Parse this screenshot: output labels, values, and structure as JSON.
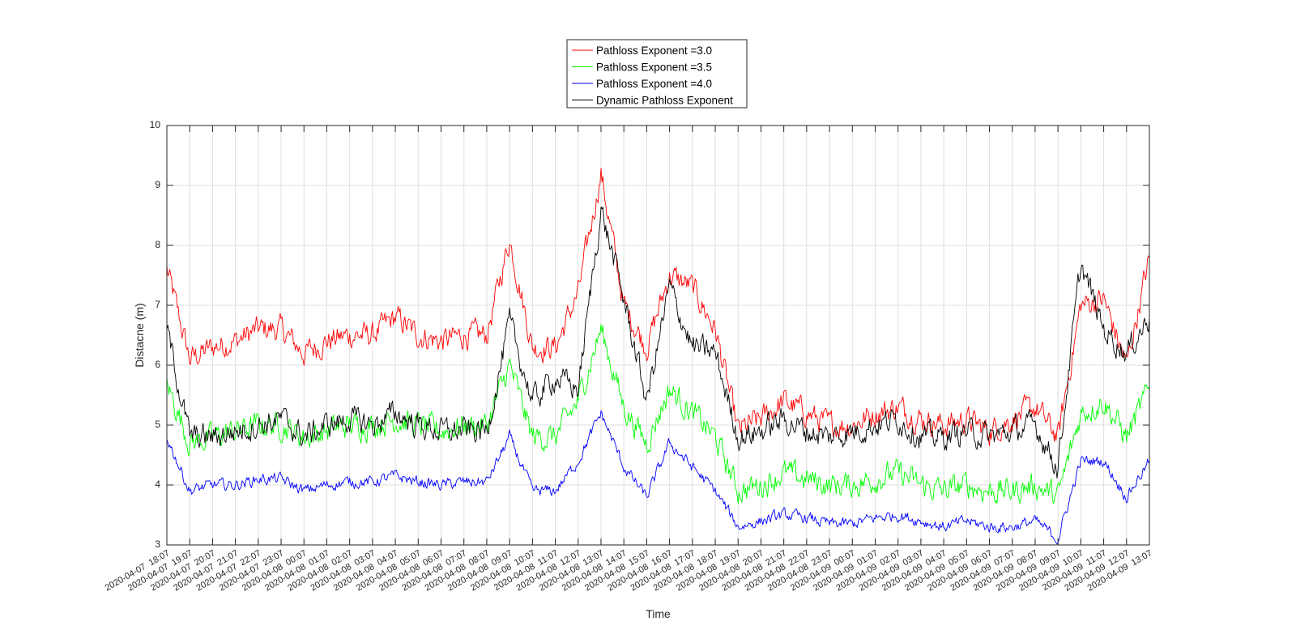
{
  "chart_data": {
    "type": "line",
    "title": "",
    "xlabel": "Time",
    "ylabel": "Distacne (m)",
    "ylim": [
      3,
      10
    ],
    "yticks": [
      3,
      4,
      5,
      6,
      7,
      8,
      9,
      10
    ],
    "grid": true,
    "legend_position": "top-center, above plot",
    "xlim": [
      "2020-04-07 18:07",
      "2020-04-09 13:07"
    ],
    "x_tick_labels": [
      "2020-04-07  18:07",
      "2020-04-07  19:07",
      "2020-04-07  20:07",
      "2020-04-07  21:07",
      "2020-04-07  22:07",
      "2020-04-07  23:07",
      "2020-04-08  00:07",
      "2020-04-08  01:07",
      "2020-04-08  02:07",
      "2020-04-08  03:07",
      "2020-04-08  04:07",
      "2020-04-08  05:07",
      "2020-04-08  06:07",
      "2020-04-08  07:07",
      "2020-04-08  08:07",
      "2020-04-08  09:07",
      "2020-04-08  10:07",
      "2020-04-08  11:07",
      "2020-04-08  12:07",
      "2020-04-08  13:07",
      "2020-04-08  14:07",
      "2020-04-08  15:07",
      "2020-04-08  16:07",
      "2020-04-08  17:07",
      "2020-04-08  18:07",
      "2020-04-08  19:07",
      "2020-04-08  20:07",
      "2020-04-08  21:07",
      "2020-04-08  22:07",
      "2020-04-08  23:07",
      "2020-04-09  00:07",
      "2020-04-09  01:07",
      "2020-04-09  02:07",
      "2020-04-09  03:07",
      "2020-04-09  04:07",
      "2020-04-09  05:07",
      "2020-04-09  06:07",
      "2020-04-09  07:07",
      "2020-04-09  08:07",
      "2020-04-09  09:07",
      "2020-04-09  10:07",
      "2020-04-09  11:07",
      "2020-04-09  12:07",
      "2020-04-09  13:07"
    ],
    "x": [
      "2020-04-07 18:07",
      "2020-04-07 19:07",
      "2020-04-07 20:07",
      "2020-04-07 21:07",
      "2020-04-07 22:07",
      "2020-04-07 23:07",
      "2020-04-08 00:07",
      "2020-04-08 01:07",
      "2020-04-08 02:07",
      "2020-04-08 03:07",
      "2020-04-08 04:07",
      "2020-04-08 05:07",
      "2020-04-08 06:07",
      "2020-04-08 07:07",
      "2020-04-08 08:07",
      "2020-04-08 09:07",
      "2020-04-08 10:07",
      "2020-04-08 11:07",
      "2020-04-08 12:07",
      "2020-04-08 13:07",
      "2020-04-08 14:07",
      "2020-04-08 15:07",
      "2020-04-08 16:07",
      "2020-04-08 17:07",
      "2020-04-08 18:07",
      "2020-04-08 19:07",
      "2020-04-08 20:07",
      "2020-04-08 21:07",
      "2020-04-08 22:07",
      "2020-04-08 23:07",
      "2020-04-09 00:07",
      "2020-04-09 01:07",
      "2020-04-09 02:07",
      "2020-04-09 03:07",
      "2020-04-09 04:07",
      "2020-04-09 05:07",
      "2020-04-09 06:07",
      "2020-04-09 07:07",
      "2020-04-09 08:07",
      "2020-04-09 09:07",
      "2020-04-09 10:07",
      "2020-04-09 11:07",
      "2020-04-09 12:07",
      "2020-04-09 13:07"
    ],
    "series": [
      {
        "name": "Pathloss Exponent =3.0",
        "color": "#ff0000",
        "values": [
          7.6,
          6.1,
          6.3,
          6.4,
          6.6,
          6.6,
          6.2,
          6.4,
          6.5,
          6.5,
          6.8,
          6.5,
          6.4,
          6.5,
          6.5,
          8.1,
          6.3,
          6.3,
          7.2,
          9.2,
          7.0,
          6.3,
          7.5,
          7.3,
          6.6,
          4.9,
          5.1,
          5.4,
          5.2,
          5.0,
          5.0,
          5.2,
          5.3,
          5.1,
          5.0,
          5.1,
          4.9,
          5.1,
          5.3,
          4.8,
          7.0,
          7.1,
          6.0,
          7.8
        ]
      },
      {
        "name": "Pathloss Exponent =3.5",
        "color": "#00ff00",
        "values": [
          5.7,
          4.7,
          4.8,
          4.9,
          5.0,
          5.0,
          4.8,
          4.9,
          5.0,
          5.0,
          5.1,
          5.0,
          4.9,
          5.0,
          5.0,
          6.0,
          4.8,
          4.8,
          5.4,
          6.6,
          5.3,
          4.7,
          5.6,
          5.2,
          4.8,
          3.9,
          4.0,
          4.2,
          4.1,
          4.0,
          4.0,
          4.1,
          4.2,
          4.0,
          3.9,
          4.0,
          3.9,
          3.9,
          4.0,
          3.8,
          5.2,
          5.4,
          4.8,
          5.6
        ]
      },
      {
        "name": "Pathloss Exponent =4.0",
        "color": "#0000ff",
        "values": [
          4.8,
          3.9,
          4.0,
          4.0,
          4.1,
          4.1,
          3.9,
          4.0,
          4.05,
          4.05,
          4.15,
          4.05,
          4.0,
          4.05,
          4.05,
          4.8,
          3.9,
          3.9,
          4.4,
          5.2,
          4.3,
          3.8,
          4.7,
          4.3,
          3.9,
          3.3,
          3.4,
          3.5,
          3.45,
          3.35,
          3.35,
          3.45,
          3.5,
          3.4,
          3.3,
          3.4,
          3.3,
          3.3,
          3.4,
          3.1,
          4.4,
          4.4,
          3.8,
          4.4
        ]
      },
      {
        "name": "Dynamic Pathloss Exponent",
        "color": "#000000",
        "values": [
          6.6,
          4.8,
          4.8,
          4.9,
          5.0,
          5.1,
          4.8,
          5.0,
          5.1,
          5.0,
          5.2,
          5.0,
          4.9,
          4.9,
          4.9,
          6.7,
          5.4,
          5.8,
          5.6,
          8.6,
          7.1,
          5.4,
          7.3,
          6.3,
          6.2,
          4.8,
          4.9,
          5.1,
          4.9,
          4.8,
          4.9,
          5.0,
          5.1,
          4.8,
          4.8,
          4.9,
          4.8,
          4.9,
          5.0,
          4.3,
          7.7,
          6.6,
          6.2,
          6.8
        ]
      }
    ]
  }
}
